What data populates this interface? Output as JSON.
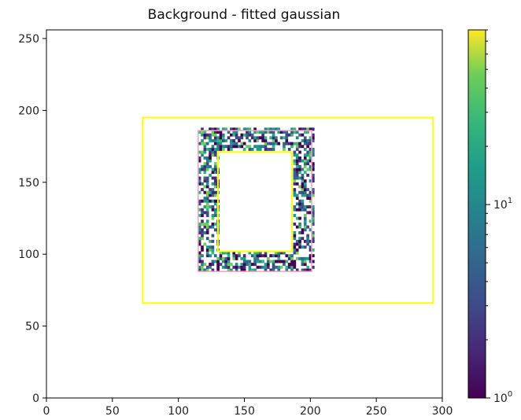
{
  "chart_data": {
    "type": "heatmap",
    "title": "Background - fitted gaussian",
    "xlabel": "",
    "ylabel": "",
    "xlim": [
      0,
      300
    ],
    "ylim": [
      0,
      256
    ],
    "x_ticks": [
      0,
      50,
      100,
      150,
      200,
      250,
      300
    ],
    "y_ticks": [
      0,
      50,
      100,
      150,
      200,
      250
    ],
    "colormap": "viridis",
    "colorbar": {
      "scale": "log",
      "range": [
        1,
        80
      ],
      "major_ticks": [
        {
          "value": 1,
          "label_base": "10",
          "label_exp": "0"
        },
        {
          "value": 10,
          "label_base": "10",
          "label_exp": "1"
        }
      ]
    },
    "rectangles": [
      {
        "name": "outer-yellow",
        "color": "#ffff00",
        "x": [
          73,
          293
        ],
        "y": [
          66,
          195
        ]
      },
      {
        "name": "inner-yellow",
        "color": "#ffff00",
        "x": [
          130,
          186
        ],
        "y": [
          102,
          171
        ]
      },
      {
        "name": "pink-annulus-border",
        "color": "#f4a0c0",
        "x": [
          115,
          201
        ],
        "y": [
          88,
          186
        ]
      }
    ],
    "masked_region": {
      "note": "annulus",
      "outer": {
        "x": [
          115,
          202
        ],
        "y": [
          88,
          187
        ]
      },
      "inner": {
        "x": [
          130,
          186
        ],
        "y": [
          102,
          171
        ]
      }
    }
  }
}
